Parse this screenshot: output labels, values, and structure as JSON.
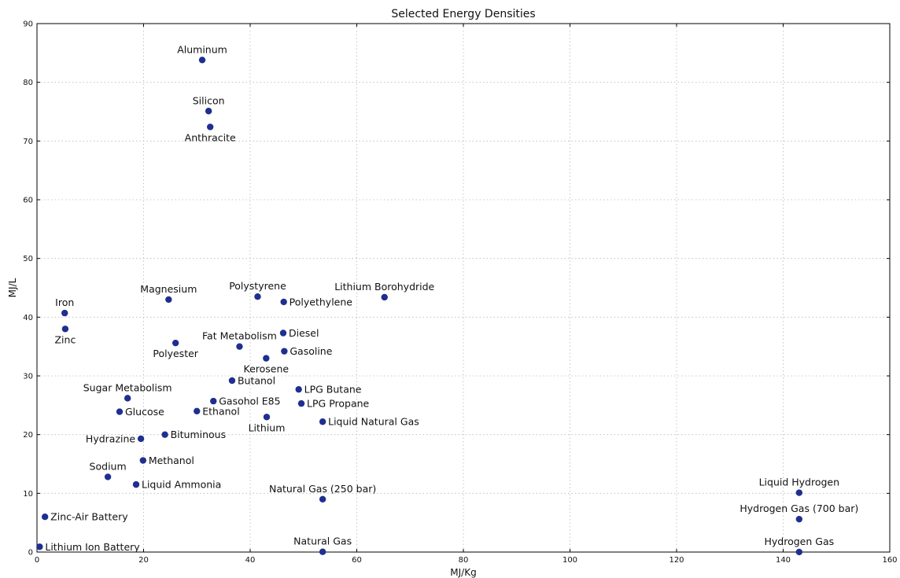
{
  "chart_data": {
    "type": "scatter",
    "title": "Selected Energy Densities",
    "xlabel": "MJ/Kg",
    "ylabel": "MJ/L",
    "xlim": [
      0,
      160
    ],
    "ylim": [
      0,
      90
    ],
    "xticks": [
      "0",
      "20",
      "40",
      "60",
      "80",
      "100",
      "120",
      "140",
      "160"
    ],
    "yticks": [
      "0",
      "10",
      "20",
      "30",
      "40",
      "50",
      "60",
      "70",
      "80",
      "90"
    ],
    "grid": true,
    "marker_color": "#1f2f8f",
    "points": [
      {
        "label": "Aluminum",
        "x": 31.0,
        "y": 83.8,
        "pos": "above"
      },
      {
        "label": "Silicon",
        "x": 32.2,
        "y": 75.1,
        "pos": "above"
      },
      {
        "label": "Anthracite",
        "x": 32.5,
        "y": 72.4,
        "pos": "below"
      },
      {
        "label": "Iron",
        "x": 5.2,
        "y": 40.7,
        "pos": "above"
      },
      {
        "label": "Zinc",
        "x": 5.3,
        "y": 38.0,
        "pos": "below"
      },
      {
        "label": "Magnesium",
        "x": 24.7,
        "y": 43.0,
        "pos": "above"
      },
      {
        "label": "Polyester",
        "x": 26.0,
        "y": 35.6,
        "pos": "below"
      },
      {
        "label": "Polystyrene",
        "x": 41.4,
        "y": 43.5,
        "pos": "above"
      },
      {
        "label": "Polyethylene",
        "x": 46.3,
        "y": 42.6,
        "pos": "right"
      },
      {
        "label": "Lithium Borohydride",
        "x": 65.2,
        "y": 43.4,
        "pos": "above"
      },
      {
        "label": "Fat Metabolism",
        "x": 38.0,
        "y": 35.0,
        "pos": "above"
      },
      {
        "label": "Diesel",
        "x": 46.2,
        "y": 37.3,
        "pos": "right"
      },
      {
        "label": "Gasoline",
        "x": 46.4,
        "y": 34.2,
        "pos": "right"
      },
      {
        "label": "Kerosene",
        "x": 43.0,
        "y": 33.0,
        "pos": "below"
      },
      {
        "label": "Butanol",
        "x": 36.6,
        "y": 29.2,
        "pos": "right"
      },
      {
        "label": "LPG Butane",
        "x": 49.1,
        "y": 27.7,
        "pos": "right"
      },
      {
        "label": "LPG Propane",
        "x": 49.6,
        "y": 25.3,
        "pos": "right"
      },
      {
        "label": "Sugar Metabolism",
        "x": 17.0,
        "y": 26.2,
        "pos": "above"
      },
      {
        "label": "Gasohol E85",
        "x": 33.1,
        "y": 25.7,
        "pos": "right"
      },
      {
        "label": "Glucose",
        "x": 15.5,
        "y": 23.9,
        "pos": "right"
      },
      {
        "label": "Ethanol",
        "x": 30.0,
        "y": 24.0,
        "pos": "right"
      },
      {
        "label": "Lithium",
        "x": 43.1,
        "y": 23.0,
        "pos": "below"
      },
      {
        "label": "Liquid Natural Gas",
        "x": 53.6,
        "y": 22.2,
        "pos": "right"
      },
      {
        "label": "Hydrazine",
        "x": 19.5,
        "y": 19.3,
        "pos": "left"
      },
      {
        "label": "Bituminous",
        "x": 24.0,
        "y": 20.0,
        "pos": "right"
      },
      {
        "label": "Methanol",
        "x": 19.9,
        "y": 15.6,
        "pos": "right"
      },
      {
        "label": "Sodium",
        "x": 13.3,
        "y": 12.8,
        "pos": "above"
      },
      {
        "label": "Liquid Ammonia",
        "x": 18.6,
        "y": 11.5,
        "pos": "right"
      },
      {
        "label": "Natural Gas (250 bar)",
        "x": 53.6,
        "y": 9.0,
        "pos": "above"
      },
      {
        "label": "Liquid Hydrogen",
        "x": 143.0,
        "y": 10.1,
        "pos": "above"
      },
      {
        "label": "Zinc-Air Battery",
        "x": 1.5,
        "y": 6.0,
        "pos": "right"
      },
      {
        "label": "Hydrogen Gas (700 bar)",
        "x": 143.0,
        "y": 5.6,
        "pos": "above"
      },
      {
        "label": "Lithium Ion Battery",
        "x": 0.5,
        "y": 0.9,
        "pos": "right"
      },
      {
        "label": "Natural Gas",
        "x": 53.6,
        "y": 0.04,
        "pos": "above"
      },
      {
        "label": "Hydrogen Gas",
        "x": 143.0,
        "y": 0.01,
        "pos": "above"
      }
    ]
  }
}
